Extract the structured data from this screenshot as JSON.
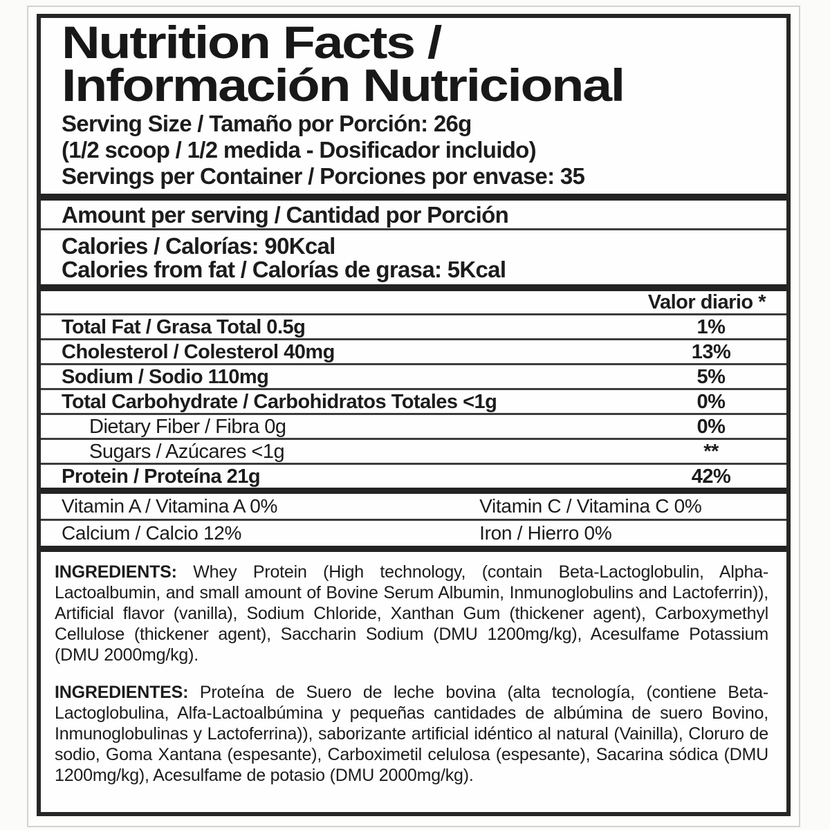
{
  "page": {
    "background_color": "#fbfbf9",
    "frame_color": "#d2d2d0"
  },
  "label": {
    "border_color": "#262626",
    "text_color": "#1c1c1c",
    "title_line1": "Nutrition Facts /",
    "title_line2": "Información Nutricional",
    "serving_size": "Serving Size / Tamaño por Porción: 26g",
    "serving_scoop": "(1/2 scoop / 1/2 medida - Dosificador incluido)",
    "servings_per_container": "Servings per Container / Porciones por envase: 35",
    "amount_per_serving": "Amount per serving / Cantidad por Porción",
    "calories": "Calories / Calorías: 90Kcal",
    "calories_from_fat": "Calories from fat / Calorías de grasa: 5Kcal",
    "daily_value_header": "Valor diario *",
    "nutrients": [
      {
        "label": "Total Fat / Grasa Total 0.5g",
        "value": "1%",
        "style": "bold"
      },
      {
        "label": "Cholesterol / Colesterol 40mg",
        "value": "13%",
        "style": "bold"
      },
      {
        "label": "Sodium / Sodio 110mg",
        "value": "5%",
        "style": "bold"
      },
      {
        "label": "Total Carbohydrate / Carbohidratos Totales <1g",
        "value": "0%",
        "style": "bold"
      },
      {
        "label": "Dietary Fiber / Fibra 0g",
        "value": "0%",
        "style": "sub"
      },
      {
        "label": "Sugars / Azúcares <1g",
        "value": "**",
        "style": "sub"
      },
      {
        "label": "Protein / Proteína 21g",
        "value": "42%",
        "style": "bold"
      }
    ],
    "vitamins": [
      {
        "left": "Vitamin A / Vitamina A 0%",
        "right": "Vitamin C / Vitamina C 0%"
      },
      {
        "left": "Calcium / Calcio 12%",
        "right": "Iron / Hierro 0%"
      }
    ],
    "ingredients_en": {
      "lead": "INGREDIENTS:",
      "text": " Whey Protein (High technology, (contain Beta-Lactoglobulin, Alpha-Lactoalbumin, and small amount of Bovine Serum Albumin, Inmunoglobulins and Lactoferrin)), Artificial flavor (vanilla), Sodium Chloride, Xanthan Gum (thickener agent), Carboxymethyl Cellulose (thickener agent), Saccharin Sodium (DMU 1200mg/kg), Acesulfame Potassium (DMU 2000mg/kg)."
    },
    "ingredients_es": {
      "lead": "INGREDIENTES:",
      "text": " Proteína de Suero de leche bovina (alta tecnología, (contiene Beta-Lactoglobulina, Alfa-Lactoalbúmina y pequeñas cantidades de albúmina de suero Bovino, Inmunoglobulinas y Lactoferrina)), saborizante artificial idéntico al natural (Vainilla), Cloruro de sodio, Goma Xantana (espesante), Carboximetil celulosa (espesante), Sacarina sódica (DMU 1200mg/kg),  Acesulfame de potasio (DMU 2000mg/kg)."
    }
  }
}
